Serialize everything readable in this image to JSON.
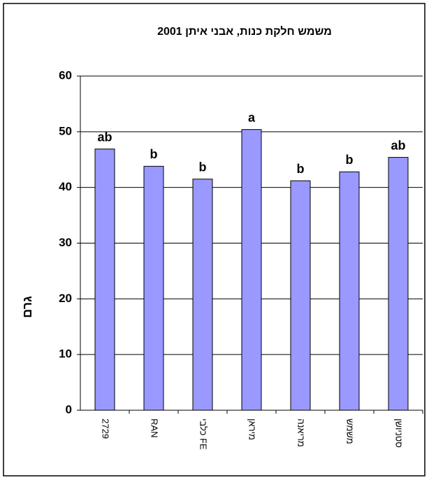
{
  "chart_data": {
    "type": "bar",
    "title": "משמש חלקת כנות, אבני איתן 2001",
    "y_label": "גרם",
    "categories": [
      "2729",
      "RAN",
      "כלבי FE",
      "מיראן",
      "מריאנה",
      "משמש",
      "סטניושן"
    ],
    "values": [
      46.9,
      43.8,
      41.5,
      50.4,
      41.2,
      42.8,
      45.4
    ],
    "value_labels": [
      "ab",
      "b",
      "b",
      "a",
      "b",
      "b",
      "ab"
    ],
    "color": "#9999ff",
    "ylim": [
      0,
      60
    ],
    "yticks": [
      0,
      10,
      20,
      30,
      40,
      50,
      60
    ],
    "grid": true
  }
}
